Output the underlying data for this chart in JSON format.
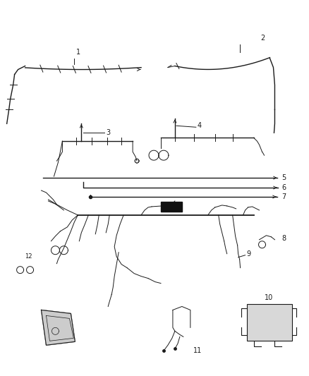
{
  "bg_color": "#ffffff",
  "line_color": "#1a1a1a",
  "label_color": "#000000",
  "label_fontsize": 7,
  "figsize": [
    4.38,
    5.33
  ],
  "dpi": 100
}
